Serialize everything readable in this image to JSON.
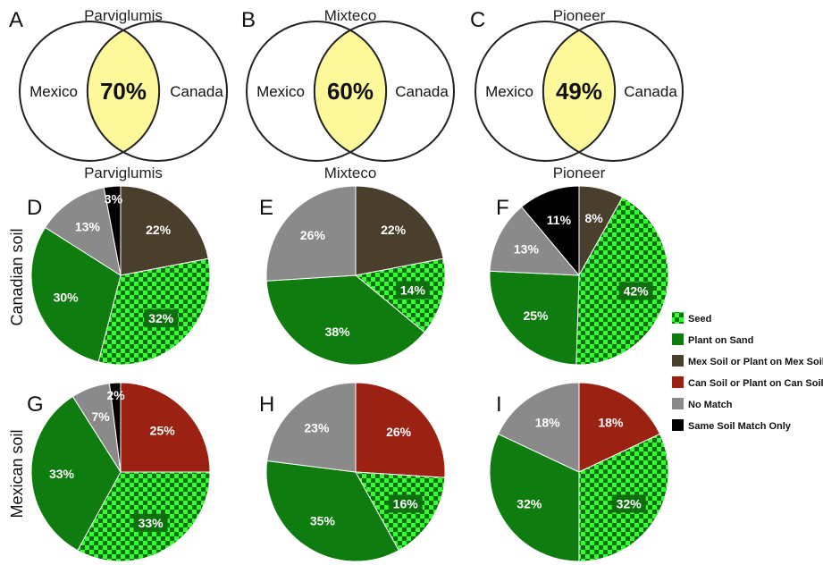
{
  "colors": {
    "Seed": "pattern:checker",
    "Plant on Sand": "#0f7c0f",
    "Mex Soil or Plant on Mex Soil": "#4a3f2c",
    "Can Soil or Plant on Can Soil": "#9b2112",
    "No Match": "#8a8a8a",
    "Same Soil Match Only": "#000000",
    "checker_light": "#33ff33",
    "checker_dark": "#0d700d",
    "venn_overlap": "#fdf89a"
  },
  "venn_panels": [
    {
      "letter": "A",
      "title": "Parviglumis",
      "left": "Mexico",
      "right": "Canada",
      "overlap": "70%"
    },
    {
      "letter": "B",
      "title": "Mixteco",
      "left": "Mexico",
      "right": "Canada",
      "overlap": "60%"
    },
    {
      "letter": "C",
      "title": "Pioneer",
      "left": "Mexico",
      "right": "Canada",
      "overlap": "49%"
    }
  ],
  "pie_titles": [
    "Parviglumis",
    "Mixteco",
    "Pioneer"
  ],
  "row_labels": [
    "Canadian soil",
    "Mexican soil"
  ],
  "legend": [
    "Seed",
    "Plant on Sand",
    "Mex Soil or Plant on Mex Soil",
    "Can Soil or Plant on Can Soil",
    "No Match",
    "Same Soil Match Only"
  ],
  "chart_data": [
    {
      "type": "pie",
      "panel": "D",
      "slices": [
        {
          "category": "Mex Soil or Plant on Mex Soil",
          "value": 22,
          "label": "22%"
        },
        {
          "category": "Seed",
          "value": 32,
          "label": "32%"
        },
        {
          "category": "Plant on Sand",
          "value": 30,
          "label": "30%"
        },
        {
          "category": "No Match",
          "value": 13,
          "label": "13%"
        },
        {
          "category": "Same Soil Match Only",
          "value": 3,
          "label": "3%"
        }
      ]
    },
    {
      "type": "pie",
      "panel": "E",
      "slices": [
        {
          "category": "Mex Soil or Plant on Mex Soil",
          "value": 22,
          "label": "22%"
        },
        {
          "category": "Seed",
          "value": 14,
          "label": "14%"
        },
        {
          "category": "Plant on Sand",
          "value": 38,
          "label": "38%"
        },
        {
          "category": "No Match",
          "value": 26,
          "label": "26%"
        }
      ]
    },
    {
      "type": "pie",
      "panel": "F",
      "slices": [
        {
          "category": "Mex Soil or Plant on Mex Soil",
          "value": 8,
          "label": "8%"
        },
        {
          "category": "Seed",
          "value": 42,
          "label": "42%"
        },
        {
          "category": "Plant on Sand",
          "value": 25,
          "label": "25%"
        },
        {
          "category": "No Match",
          "value": 13,
          "label": "13%"
        },
        {
          "category": "Same Soil Match Only",
          "value": 11,
          "label": "11%"
        }
      ]
    },
    {
      "type": "pie",
      "panel": "G",
      "slices": [
        {
          "category": "Can Soil or Plant on Can Soil",
          "value": 25,
          "label": "25%"
        },
        {
          "category": "Seed",
          "value": 33,
          "label": "33%"
        },
        {
          "category": "Plant on Sand",
          "value": 33,
          "label": "33%"
        },
        {
          "category": "No Match",
          "value": 7,
          "label": "7%"
        },
        {
          "category": "Same Soil Match Only",
          "value": 2,
          "label": "2%"
        }
      ]
    },
    {
      "type": "pie",
      "panel": "H",
      "slices": [
        {
          "category": "Can Soil or Plant on Can Soil",
          "value": 26,
          "label": "26%"
        },
        {
          "category": "Seed",
          "value": 16,
          "label": "16%"
        },
        {
          "category": "Plant on Sand",
          "value": 35,
          "label": "35%"
        },
        {
          "category": "No Match",
          "value": 23,
          "label": "23%"
        }
      ]
    },
    {
      "type": "pie",
      "panel": "I",
      "slices": [
        {
          "category": "Can Soil or Plant on Can Soil",
          "value": 18,
          "label": "18%"
        },
        {
          "category": "Seed",
          "value": 32,
          "label": "32%"
        },
        {
          "category": "Plant on Sand",
          "value": 32,
          "label": "32%"
        },
        {
          "category": "No Match",
          "value": 18,
          "label": "18%"
        }
      ]
    }
  ]
}
